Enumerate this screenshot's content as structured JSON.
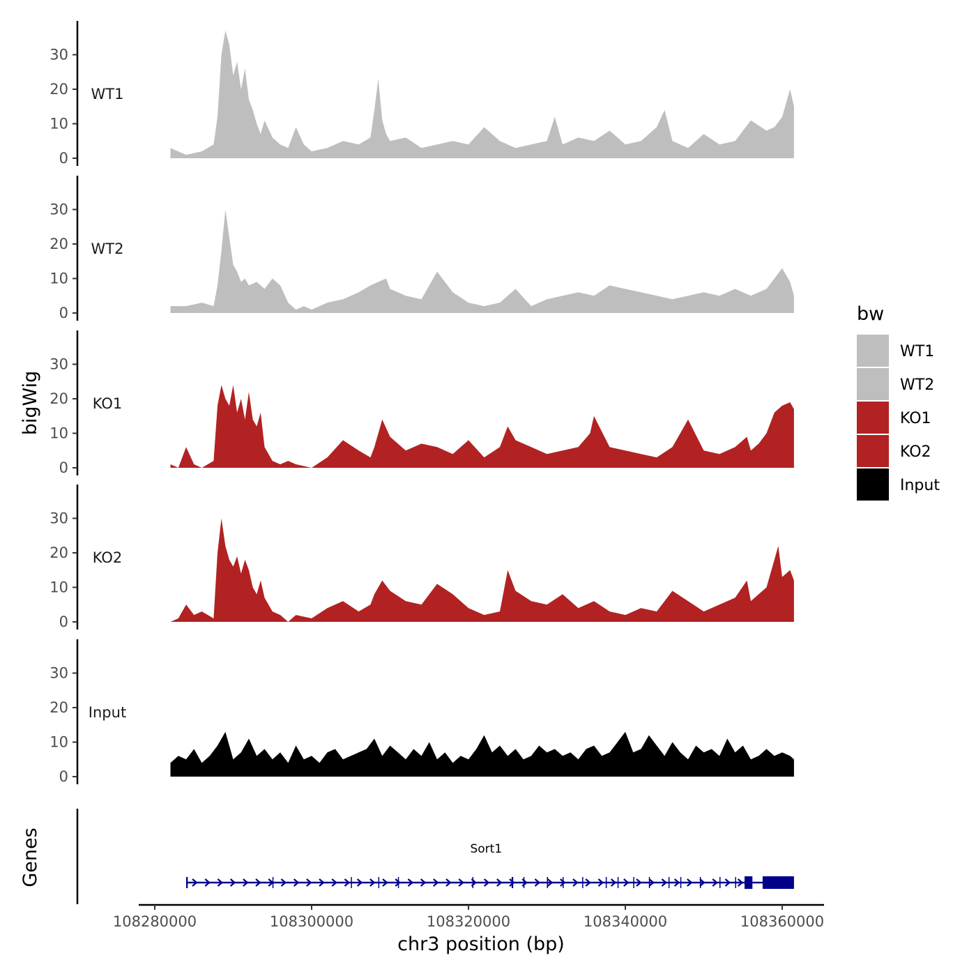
{
  "chart_data": {
    "type": "area",
    "title": "",
    "xlabel": "chr3 position (bp)",
    "ylabel": "bigWig",
    "genes_label": "Genes",
    "xlim": [
      108280000,
      108365000
    ],
    "x_ticks": [
      108280000,
      108300000,
      108320000,
      108340000,
      108360000
    ],
    "x_tick_labels": [
      "108280000",
      "108300000",
      "108320000",
      "108340000",
      "108360000"
    ],
    "ylim": [
      0,
      40
    ],
    "y_ticks": [
      0,
      10,
      20,
      30
    ],
    "y_tick_labels": [
      "0",
      "10",
      "20",
      "30"
    ],
    "region": [
      108282000,
      108361500
    ],
    "legend": {
      "title": "bw",
      "position": "right",
      "entries": [
        {
          "label": "WT1",
          "color": "#bebebe"
        },
        {
          "label": "WT2",
          "color": "#bebebe"
        },
        {
          "label": "KO1",
          "color": "#b22222"
        },
        {
          "label": "KO2",
          "color": "#b22222"
        },
        {
          "label": "Input",
          "color": "#000000"
        }
      ]
    },
    "tracks": [
      {
        "name": "WT1",
        "color": "#bebebe",
        "x": [
          108282000,
          108284000,
          108286000,
          108287500,
          108288000,
          108288500,
          108289000,
          108289500,
          108290000,
          108290500,
          108291000,
          108291500,
          108292000,
          108292500,
          108293000,
          108293500,
          108294000,
          108295000,
          108296000,
          108297000,
          108298000,
          108299000,
          108300000,
          108302000,
          108304000,
          108306000,
          108307500,
          108308000,
          108308500,
          108309000,
          108309500,
          108310000,
          108312000,
          108314000,
          108316000,
          108318000,
          108320000,
          108322000,
          108324000,
          108326000,
          108328000,
          108330000,
          108331000,
          108332000,
          108334000,
          108336000,
          108338000,
          108340000,
          108342000,
          108344000,
          108345000,
          108346000,
          108348000,
          108350000,
          108352000,
          108354000,
          108356000,
          108358000,
          108359000,
          108360000,
          108361000,
          108361500
        ],
        "values": [
          3,
          1,
          2,
          4,
          12,
          30,
          37,
          33,
          24,
          28,
          20,
          26,
          17,
          14,
          10,
          7,
          11,
          6,
          4,
          3,
          9,
          4,
          2,
          3,
          5,
          4,
          6,
          14,
          23,
          11,
          7,
          5,
          6,
          3,
          4,
          5,
          4,
          9,
          5,
          3,
          4,
          5,
          12,
          4,
          6,
          5,
          8,
          4,
          5,
          9,
          14,
          5,
          3,
          7,
          4,
          5,
          11,
          8,
          9,
          12,
          20,
          15
        ]
      },
      {
        "name": "WT2",
        "color": "#bebebe",
        "x": [
          108282000,
          108284000,
          108286000,
          108287500,
          108288000,
          108288500,
          108289000,
          108289500,
          108290000,
          108290500,
          108291000,
          108291500,
          108292000,
          108293000,
          108294000,
          108295000,
          108296000,
          108297000,
          108298000,
          108299000,
          108300000,
          108302000,
          108304000,
          108306000,
          108307500,
          108308500,
          108309500,
          108310000,
          108312000,
          108314000,
          108316000,
          108318000,
          108320000,
          108322000,
          108324000,
          108326000,
          108328000,
          108330000,
          108332000,
          108334000,
          108336000,
          108338000,
          108340000,
          108342000,
          108344000,
          108346000,
          108348000,
          108350000,
          108352000,
          108354000,
          108356000,
          108358000,
          108359000,
          108360000,
          108361000,
          108361500
        ],
        "values": [
          2,
          2,
          3,
          2,
          8,
          18,
          30,
          22,
          14,
          12,
          9,
          10,
          8,
          9,
          7,
          10,
          8,
          3,
          1,
          2,
          1,
          3,
          4,
          6,
          8,
          9,
          10,
          7,
          5,
          4,
          12,
          6,
          3,
          2,
          3,
          7,
          2,
          4,
          5,
          6,
          5,
          8,
          7,
          6,
          5,
          4,
          5,
          6,
          5,
          7,
          5,
          7,
          10,
          13,
          9,
          5
        ]
      },
      {
        "name": "KO1",
        "color": "#b22222",
        "x": [
          108282000,
          108283000,
          108284000,
          108285000,
          108286000,
          108287500,
          108288000,
          108288500,
          108289000,
          108289500,
          108290000,
          108290500,
          108291000,
          108291500,
          108292000,
          108292500,
          108293000,
          108293500,
          108294000,
          108295000,
          108296000,
          108297000,
          108298000,
          108300000,
          108302000,
          108304000,
          108306000,
          108307500,
          108308000,
          108309000,
          108310000,
          108312000,
          108314000,
          108316000,
          108318000,
          108320000,
          108322000,
          108324000,
          108325000,
          108326000,
          108328000,
          108330000,
          108332000,
          108334000,
          108335500,
          108336000,
          108338000,
          108340000,
          108342000,
          108344000,
          108346000,
          108347000,
          108348000,
          108350000,
          108352000,
          108354000,
          108355500,
          108356000,
          108357000,
          108358000,
          108359000,
          108360000,
          108361000,
          108361500
        ],
        "values": [
          1,
          0,
          6,
          1,
          0,
          2,
          18,
          24,
          20,
          18,
          24,
          16,
          20,
          14,
          22,
          14,
          12,
          16,
          6,
          2,
          1,
          2,
          1,
          0,
          3,
          8,
          5,
          3,
          6,
          14,
          9,
          5,
          7,
          6,
          4,
          8,
          3,
          6,
          12,
          8,
          6,
          4,
          5,
          6,
          10,
          15,
          6,
          5,
          4,
          3,
          6,
          10,
          14,
          5,
          4,
          6,
          9,
          5,
          7,
          10,
          16,
          18,
          19,
          17
        ]
      },
      {
        "name": "KO2",
        "color": "#b22222",
        "x": [
          108282000,
          108283000,
          108284000,
          108285000,
          108286000,
          108287500,
          108288000,
          108288500,
          108289000,
          108289500,
          108290000,
          108290500,
          108291000,
          108291500,
          108292000,
          108292500,
          108293000,
          108293500,
          108294000,
          108295000,
          108296000,
          108297000,
          108298000,
          108300000,
          108302000,
          108304000,
          108306000,
          108307500,
          108308000,
          108309000,
          108310000,
          108312000,
          108314000,
          108316000,
          108318000,
          108320000,
          108322000,
          108324000,
          108325000,
          108326000,
          108328000,
          108330000,
          108332000,
          108334000,
          108336000,
          108338000,
          108340000,
          108342000,
          108344000,
          108346000,
          108348000,
          108350000,
          108352000,
          108354000,
          108355500,
          108356000,
          108358000,
          108359000,
          108359500,
          108360000,
          108361000,
          108361500
        ],
        "values": [
          0,
          1,
          5,
          2,
          3,
          1,
          20,
          30,
          22,
          18,
          16,
          19,
          14,
          18,
          15,
          10,
          8,
          12,
          7,
          3,
          2,
          0,
          2,
          1,
          4,
          6,
          3,
          5,
          8,
          12,
          9,
          6,
          5,
          11,
          8,
          4,
          2,
          3,
          15,
          9,
          6,
          5,
          8,
          4,
          6,
          3,
          2,
          4,
          3,
          9,
          6,
          3,
          5,
          7,
          12,
          6,
          10,
          18,
          22,
          13,
          15,
          12
        ]
      },
      {
        "name": "Input",
        "color": "#000000",
        "x": [
          108282000,
          108283000,
          108284000,
          108285000,
          108286000,
          108287000,
          108288000,
          108289000,
          108290000,
          108291000,
          108292000,
          108293000,
          108294000,
          108295000,
          108296000,
          108297000,
          108298000,
          108299000,
          108300000,
          108301000,
          108302000,
          108303000,
          108304000,
          108305000,
          108306000,
          108307000,
          108308000,
          108309000,
          108310000,
          108311000,
          108312000,
          108313000,
          108314000,
          108315000,
          108316000,
          108317000,
          108318000,
          108319000,
          108320000,
          108321000,
          108322000,
          108323000,
          108324000,
          108325000,
          108326000,
          108327000,
          108328000,
          108329000,
          108330000,
          108331000,
          108332000,
          108333000,
          108334000,
          108335000,
          108336000,
          108337000,
          108338000,
          108339000,
          108340000,
          108341000,
          108342000,
          108343000,
          108344000,
          108345000,
          108346000,
          108347000,
          108348000,
          108349000,
          108350000,
          108351000,
          108352000,
          108353000,
          108354000,
          108355000,
          108356000,
          108357000,
          108358000,
          108359000,
          108360000,
          108361000,
          108361500
        ],
        "values": [
          4,
          6,
          5,
          8,
          4,
          6,
          9,
          13,
          5,
          7,
          11,
          6,
          8,
          5,
          7,
          4,
          9,
          5,
          6,
          4,
          7,
          8,
          5,
          6,
          7,
          8,
          11,
          6,
          9,
          7,
          5,
          8,
          6,
          10,
          5,
          7,
          4,
          6,
          5,
          8,
          12,
          7,
          9,
          6,
          8,
          5,
          6,
          9,
          7,
          8,
          6,
          7,
          5,
          8,
          9,
          6,
          7,
          10,
          13,
          7,
          8,
          12,
          9,
          6,
          10,
          7,
          5,
          9,
          7,
          8,
          6,
          11,
          7,
          9,
          5,
          6,
          8,
          6,
          7,
          6,
          5
        ]
      }
    ],
    "gene": {
      "name": "Sort1",
      "strand": "+",
      "start": 108284000,
      "end": 108361500,
      "color": "#00008b",
      "exons": [
        [
          108284000,
          108284200
        ],
        [
          108295000,
          108295100
        ],
        [
          108305000,
          108305100
        ],
        [
          108308500,
          108308600
        ],
        [
          108311000,
          108311100
        ],
        [
          108320500,
          108320600
        ],
        [
          108325500,
          108325700
        ],
        [
          108327000,
          108327100
        ],
        [
          108330000,
          108330100
        ],
        [
          108332000,
          108332100
        ],
        [
          108334500,
          108334600
        ],
        [
          108337500,
          108337600
        ],
        [
          108339000,
          108339100
        ],
        [
          108341000,
          108341100
        ],
        [
          108343000,
          108343100
        ],
        [
          108345500,
          108345600
        ],
        [
          108347000,
          108347100
        ],
        [
          108349500,
          108349600
        ],
        [
          108352000,
          108352100
        ],
        [
          108354000,
          108354100
        ],
        [
          108355200,
          108356200
        ],
        [
          108357500,
          108361500
        ]
      ]
    }
  }
}
